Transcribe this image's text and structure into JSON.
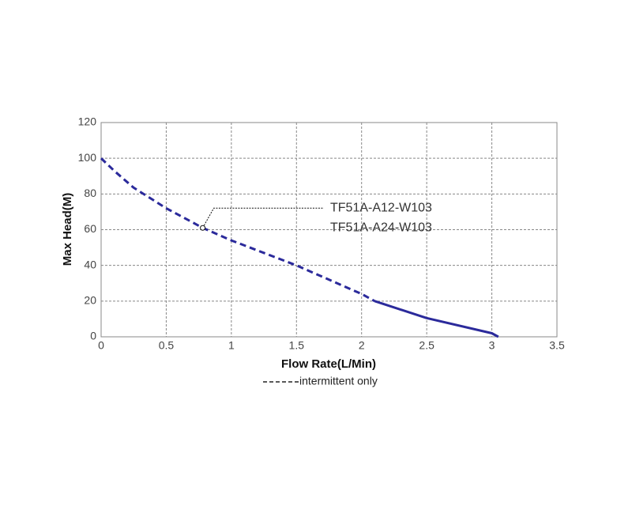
{
  "chart_data": {
    "type": "line",
    "xlabel": "Flow Rate(L/Min)",
    "ylabel": "Max Head(M)",
    "xlim": [
      0,
      3.5
    ],
    "xticks": [
      0,
      0.5,
      1,
      1.5,
      2,
      2.5,
      3,
      3.5
    ],
    "ylim": [
      0,
      120
    ],
    "yticks": [
      0,
      20,
      40,
      60,
      80,
      100,
      120
    ],
    "grid": true,
    "series": [
      {
        "color": "#2b2a9b",
        "line_style": "dashed",
        "x": [
          0,
          0.1,
          0.25,
          0.5,
          0.78,
          1,
          1.5,
          2,
          2.1
        ],
        "values": [
          100,
          93,
          83.5,
          72,
          61,
          54,
          40,
          24,
          20
        ]
      },
      {
        "color": "#2b2a9b",
        "line_style": "solid",
        "x": [
          2.1,
          2.5,
          3,
          3.05
        ],
        "values": [
          20,
          10.5,
          2,
          0
        ]
      }
    ],
    "annotation": {
      "x": 0.78,
      "y": 61,
      "lines": [
        "TF51A-A12-W103",
        "TF51A-A24-W103"
      ]
    },
    "note": "intermittent only"
  }
}
